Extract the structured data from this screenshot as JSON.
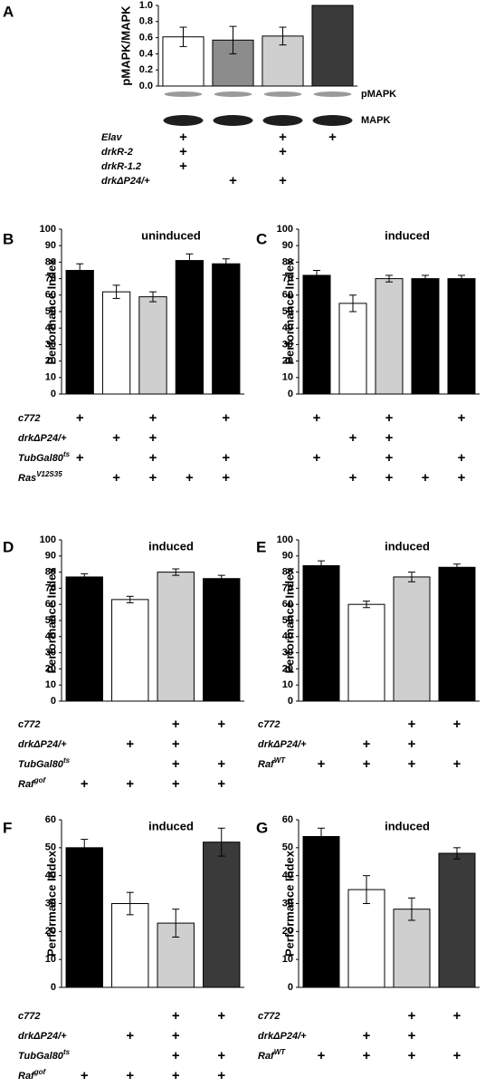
{
  "chart_data": [
    {
      "type": "bar",
      "panel": "A",
      "ylabel": "pMAPK/MAPK",
      "values": [
        0.61,
        0.57,
        0.62,
        1.0
      ],
      "errors": [
        0.12,
        0.17,
        0.11,
        null
      ],
      "colors": [
        "#ffffff",
        "#8c8c8c",
        "#cfcfcf",
        "#3a3a3a"
      ],
      "ylim": [
        0,
        1
      ],
      "yticks": [
        {
          "value": 0,
          "label": "0.0"
        },
        0.2,
        0.4,
        0.6,
        0.8,
        {
          "value": 1,
          "label": "1.0"
        }
      ],
      "blot_labels": [
        "pMAPK",
        "MAPK"
      ],
      "genotype": [
        {
          "name": "Elav",
          "marks": [
            "+",
            null,
            "+",
            "+"
          ]
        },
        {
          "name": "drkR-2",
          "marks": [
            "+",
            null,
            "+",
            null
          ]
        },
        {
          "name": "drkR-1.2",
          "marks": [
            "+",
            null,
            null,
            null
          ]
        },
        {
          "name": "drkΔP24/+",
          "marks": [
            null,
            "+",
            "+",
            null
          ]
        }
      ]
    },
    {
      "type": "bar",
      "panel": "B",
      "title": "uninduced",
      "ylabel": "Performance Index",
      "values": [
        75,
        62,
        59,
        81,
        79
      ],
      "errors": [
        4,
        4,
        3,
        4,
        3
      ],
      "colors": [
        "#000000",
        "#ffffff",
        "#cfcfcf",
        "#000000",
        "#000000"
      ],
      "ylim": [
        0,
        100
      ],
      "yticks": [
        0,
        10,
        20,
        30,
        40,
        50,
        60,
        70,
        80,
        90,
        100
      ],
      "genotype": [
        {
          "name": "c772",
          "marks": [
            "+",
            null,
            "+",
            null,
            "+"
          ]
        },
        {
          "name": "drkΔP24/+",
          "marks": [
            null,
            "+",
            "+",
            null,
            null
          ]
        },
        {
          "name": "TubGal80",
          "sup": "ts",
          "marks": [
            "+",
            null,
            "+",
            null,
            "+"
          ]
        },
        {
          "name": "Ras",
          "sup": "V12S35",
          "marks": [
            null,
            "+",
            "+",
            "+",
            "+"
          ]
        }
      ]
    },
    {
      "type": "bar",
      "panel": "C",
      "title": "induced",
      "ylabel": "Performance Index",
      "values": [
        72,
        55,
        70,
        70,
        70
      ],
      "errors": [
        3,
        5,
        2,
        2,
        2
      ],
      "colors": [
        "#000000",
        "#ffffff",
        "#cfcfcf",
        "#000000",
        "#000000"
      ],
      "ylim": [
        0,
        100
      ],
      "yticks": [
        0,
        10,
        20,
        30,
        40,
        50,
        60,
        70,
        80,
        90,
        100
      ],
      "genotype": [
        {
          "marks": [
            "+",
            null,
            "+",
            null,
            "+"
          ]
        },
        {
          "marks": [
            null,
            "+",
            "+",
            null,
            null
          ]
        },
        {
          "marks": [
            "+",
            null,
            "+",
            null,
            "+"
          ]
        },
        {
          "marks": [
            null,
            "+",
            "+",
            "+",
            "+"
          ]
        }
      ]
    },
    {
      "type": "bar",
      "panel": "D",
      "title": "induced",
      "ylabel": "Performance Index",
      "values": [
        77,
        63,
        80,
        76
      ],
      "errors": [
        2,
        2,
        2,
        2
      ],
      "colors": [
        "#000000",
        "#ffffff",
        "#cfcfcf",
        "#000000"
      ],
      "ylim": [
        0,
        100
      ],
      "yticks": [
        0,
        10,
        20,
        30,
        40,
        50,
        60,
        70,
        80,
        90,
        100
      ],
      "genotype": [
        {
          "name": "c772",
          "marks": [
            null,
            null,
            "+",
            "+"
          ]
        },
        {
          "name": "drkΔP24/+",
          "marks": [
            null,
            "+",
            "+",
            null
          ]
        },
        {
          "name": "TubGal80",
          "sup": "ts",
          "marks": [
            null,
            null,
            "+",
            "+"
          ]
        },
        {
          "name": "Raf",
          "sup": "gof",
          "marks": [
            "+",
            "+",
            "+",
            "+"
          ]
        }
      ]
    },
    {
      "type": "bar",
      "panel": "E",
      "title": "induced",
      "ylabel": "Performance Index",
      "values": [
        84,
        60,
        77,
        83
      ],
      "errors": [
        3,
        2,
        3,
        2
      ],
      "colors": [
        "#000000",
        "#ffffff",
        "#cfcfcf",
        "#000000"
      ],
      "ylim": [
        0,
        100
      ],
      "yticks": [
        0,
        10,
        20,
        30,
        40,
        50,
        60,
        70,
        80,
        90,
        100
      ],
      "genotype": [
        {
          "name": "c772",
          "marks": [
            null,
            null,
            "+",
            "+"
          ]
        },
        {
          "name": "drkΔP24/+",
          "marks": [
            null,
            "+",
            "+",
            null
          ]
        },
        {
          "name": "Raf",
          "sup": "WT",
          "marks": [
            "+",
            "+",
            "+",
            "+"
          ]
        }
      ]
    },
    {
      "type": "bar",
      "panel": "F",
      "title": "induced",
      "ylabel": "Performance Index",
      "values": [
        50,
        30,
        23,
        52
      ],
      "errors": [
        3,
        4,
        5,
        5
      ],
      "colors": [
        "#000000",
        "#ffffff",
        "#cfcfcf",
        "#3a3a3a"
      ],
      "ylim": [
        0,
        60
      ],
      "yticks": [
        0,
        10,
        20,
        30,
        40,
        50,
        60
      ],
      "genotype": [
        {
          "name": "c772",
          "marks": [
            null,
            null,
            "+",
            "+"
          ]
        },
        {
          "name": "drkΔP24/+",
          "marks": [
            null,
            "+",
            "+",
            null
          ]
        },
        {
          "name": "TubGal80",
          "sup": "ts",
          "marks": [
            null,
            null,
            "+",
            "+"
          ]
        },
        {
          "name": "Raf",
          "sup": "gof",
          "marks": [
            "+",
            "+",
            "+",
            "+"
          ]
        }
      ]
    },
    {
      "type": "bar",
      "panel": "G",
      "title": "induced",
      "ylabel": "Performance Index",
      "values": [
        54,
        35,
        28,
        48
      ],
      "errors": [
        3,
        5,
        4,
        2
      ],
      "colors": [
        "#000000",
        "#ffffff",
        "#cfcfcf",
        "#3a3a3a"
      ],
      "ylim": [
        0,
        60
      ],
      "yticks": [
        0,
        10,
        20,
        30,
        40,
        50,
        60
      ],
      "genotype": [
        {
          "name": "c772",
          "marks": [
            null,
            null,
            "+",
            "+"
          ]
        },
        {
          "name": "drkΔP24/+",
          "marks": [
            null,
            "+",
            "+",
            null
          ]
        },
        {
          "name": "Raf",
          "sup": "WT",
          "marks": [
            "+",
            "+",
            "+",
            "+"
          ]
        }
      ]
    }
  ]
}
